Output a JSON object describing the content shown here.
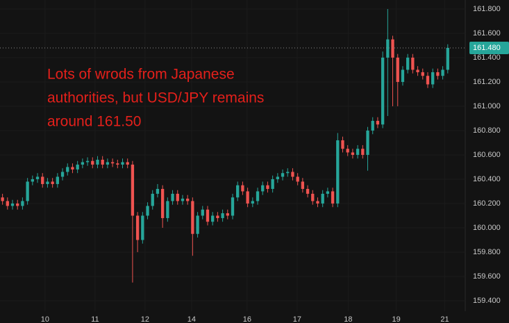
{
  "chart_data": {
    "type": "candlestick",
    "annotation": [
      "Lots of wrods from Japanese",
      "authorities, but USD/JPY remains",
      "around 161.50"
    ],
    "up_color": "#26a69a",
    "down_color": "#ef5350",
    "xlim": [
      -0.5,
      92.5
    ],
    "xticks": [
      {
        "value": 8.5,
        "label": "10"
      },
      {
        "value": 18.5,
        "label": "11"
      },
      {
        "value": 28.5,
        "label": "12"
      },
      {
        "value": 37.8,
        "label": "14"
      },
      {
        "value": 48.9,
        "label": "16"
      },
      {
        "value": 58.9,
        "label": "17"
      },
      {
        "value": 69.1,
        "label": "18"
      },
      {
        "value": 78.7,
        "label": "19"
      },
      {
        "value": 88.4,
        "label": "21"
      }
    ],
    "ylim": [
      159.217,
      161.874
    ],
    "yticks": [
      {
        "value": 159.4,
        "label": "159.400"
      },
      {
        "value": 159.6,
        "label": "159.600"
      },
      {
        "value": 159.8,
        "label": "159.800"
      },
      {
        "value": 160.0,
        "label": "160.000"
      },
      {
        "value": 160.2,
        "label": "160.200"
      },
      {
        "value": 160.4,
        "label": "160.400"
      },
      {
        "value": 160.6,
        "label": "160.600"
      },
      {
        "value": 160.8,
        "label": "160.800"
      },
      {
        "value": 161.0,
        "label": "161.000"
      },
      {
        "value": 161.2,
        "label": "161.200"
      },
      {
        "value": 161.4,
        "label": "161.400"
      },
      {
        "value": 161.6,
        "label": "161.600"
      },
      {
        "value": 161.8,
        "label": "161.800"
      }
    ],
    "last_price": {
      "value": 161.48,
      "label": "161.480"
    },
    "open": [
      160.25,
      160.22,
      160.18,
      160.2,
      160.18,
      160.22,
      160.38,
      160.4,
      160.42,
      160.36,
      160.38,
      160.36,
      160.42,
      160.46,
      160.5,
      160.48,
      160.52,
      160.54,
      160.55,
      160.52,
      160.56,
      160.52,
      160.54,
      160.53,
      160.52,
      160.54,
      160.52,
      160.1,
      159.9,
      160.1,
      160.18,
      160.28,
      160.32,
      160.08,
      160.22,
      160.28,
      160.22,
      160.24,
      160.22,
      159.95,
      160.1,
      160.15,
      160.05,
      160.1,
      160.08,
      160.12,
      160.1,
      160.25,
      160.35,
      160.3,
      160.2,
      160.22,
      160.3,
      160.35,
      160.32,
      160.4,
      160.42,
      160.45,
      160.46,
      160.42,
      160.38,
      160.32,
      160.28,
      160.22,
      160.2,
      160.28,
      160.3,
      160.2,
      160.72,
      160.65,
      160.62,
      160.6,
      160.65,
      160.6,
      160.8,
      160.88,
      160.85,
      161.4,
      161.55,
      161.4,
      161.2,
      161.3,
      161.4,
      161.3,
      161.28,
      161.25,
      161.18,
      161.28,
      161.25,
      161.3
    ],
    "high": [
      160.28,
      160.25,
      160.23,
      160.23,
      160.25,
      160.41,
      160.43,
      160.45,
      160.45,
      160.41,
      160.41,
      160.45,
      160.49,
      160.53,
      160.53,
      160.55,
      160.57,
      160.58,
      160.58,
      160.59,
      160.59,
      160.57,
      160.57,
      160.56,
      160.57,
      160.57,
      160.55,
      160.13,
      160.13,
      160.21,
      160.31,
      160.36,
      160.35,
      160.25,
      160.31,
      160.31,
      160.27,
      160.27,
      160.25,
      160.13,
      160.18,
      160.18,
      160.13,
      160.13,
      160.15,
      160.15,
      160.28,
      160.38,
      160.38,
      160.33,
      160.25,
      160.33,
      160.38,
      160.38,
      160.43,
      160.45,
      160.48,
      160.49,
      160.49,
      160.45,
      160.41,
      160.35,
      160.31,
      160.25,
      160.31,
      160.33,
      160.33,
      160.78,
      160.75,
      160.68,
      160.65,
      160.68,
      160.68,
      160.83,
      160.91,
      160.91,
      161.45,
      161.8,
      161.58,
      161.43,
      161.33,
      161.43,
      161.43,
      161.33,
      161.31,
      161.28,
      161.31,
      161.31,
      161.33,
      161.51
    ],
    "low": [
      160.19,
      160.15,
      160.15,
      160.15,
      160.15,
      160.19,
      160.35,
      160.37,
      160.33,
      160.33,
      160.33,
      160.33,
      160.39,
      160.43,
      160.45,
      160.45,
      160.49,
      160.51,
      160.49,
      160.49,
      160.49,
      160.49,
      160.5,
      160.49,
      160.49,
      160.49,
      159.55,
      159.8,
      159.87,
      160.07,
      160.15,
      160.25,
      160.0,
      160.05,
      160.19,
      160.19,
      160.19,
      160.19,
      159.77,
      159.92,
      160.07,
      160.02,
      160.02,
      160.05,
      160.05,
      160.07,
      160.07,
      160.22,
      160.27,
      160.17,
      160.17,
      160.19,
      160.27,
      160.29,
      160.29,
      160.37,
      160.39,
      160.42,
      160.39,
      160.35,
      160.29,
      160.25,
      160.19,
      160.17,
      160.17,
      160.25,
      160.17,
      160.17,
      160.62,
      160.59,
      160.57,
      160.57,
      160.57,
      160.47,
      160.77,
      160.82,
      160.82,
      160.92,
      161.0,
      161.0,
      161.17,
      161.27,
      161.27,
      161.25,
      161.22,
      161.15,
      161.15,
      161.22,
      161.22,
      161.27
    ],
    "close": [
      160.22,
      160.18,
      160.2,
      160.18,
      160.22,
      160.38,
      160.4,
      160.42,
      160.36,
      160.38,
      160.36,
      160.42,
      160.46,
      160.5,
      160.48,
      160.52,
      160.54,
      160.55,
      160.52,
      160.56,
      160.52,
      160.54,
      160.53,
      160.52,
      160.54,
      160.52,
      160.1,
      159.9,
      160.1,
      160.18,
      160.28,
      160.32,
      160.08,
      160.22,
      160.28,
      160.22,
      160.24,
      160.22,
      159.95,
      160.1,
      160.15,
      160.05,
      160.1,
      160.08,
      160.12,
      160.1,
      160.25,
      160.35,
      160.3,
      160.2,
      160.22,
      160.3,
      160.35,
      160.32,
      160.4,
      160.42,
      160.45,
      160.46,
      160.42,
      160.38,
      160.32,
      160.28,
      160.22,
      160.2,
      160.28,
      160.3,
      160.2,
      160.72,
      160.65,
      160.62,
      160.6,
      160.65,
      160.6,
      160.8,
      160.88,
      160.85,
      161.4,
      161.55,
      161.4,
      161.2,
      161.3,
      161.4,
      161.3,
      161.28,
      161.25,
      161.18,
      161.28,
      161.25,
      161.3,
      161.48
    ]
  }
}
